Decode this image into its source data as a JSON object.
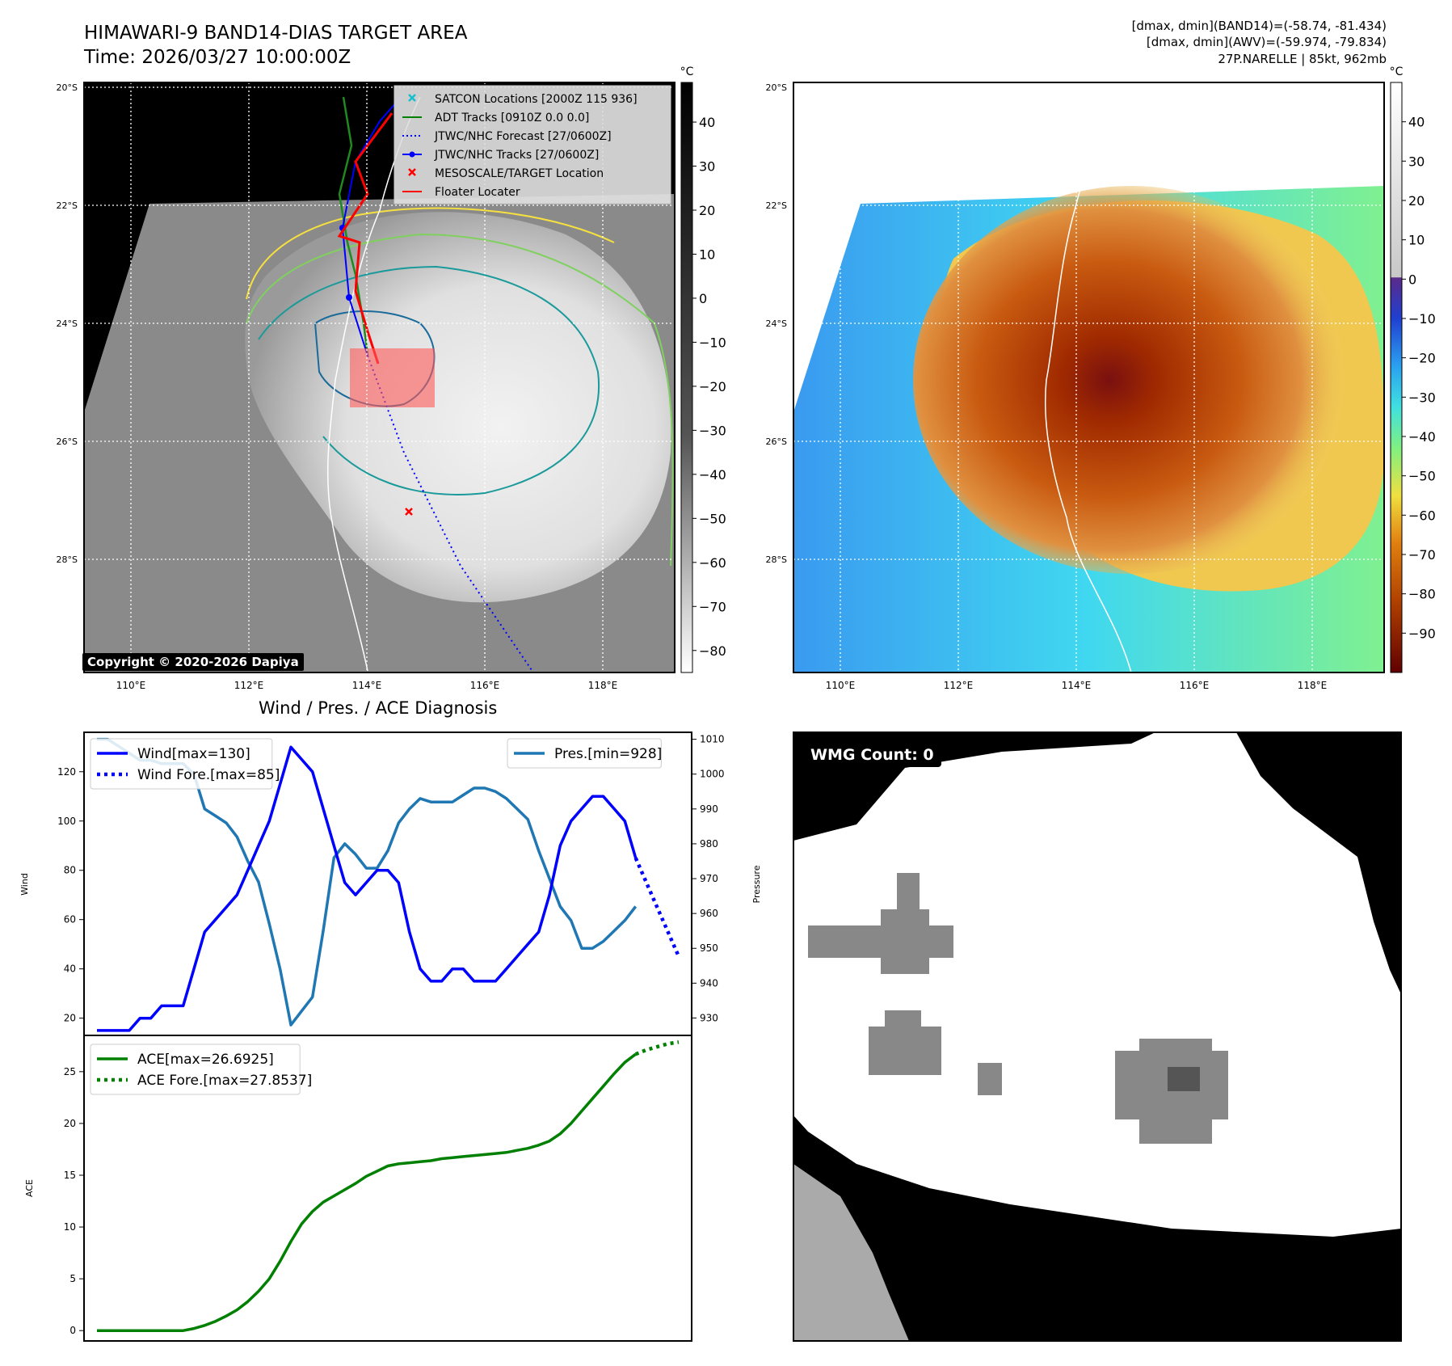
{
  "header": {
    "title_line1": "HIMAWARI-9 BAND14-DIAS TARGET AREA",
    "title_line2": "Time: 2026/03/27 10:00:00Z",
    "stats_line1": "[dmax, dmin](BAND14)=(-58.74, -81.434)",
    "stats_line2": "[dmax, dmin](AWV)=(-59.974, -79.834)",
    "stats_line3": "27P.NARELLE | 85kt, 962mb"
  },
  "map": {
    "lat_labels": [
      "20°S",
      "22°S",
      "24°S",
      "26°S",
      "28°S"
    ],
    "lon_labels": [
      "110°E",
      "112°E",
      "114°E",
      "116°E",
      "118°E"
    ],
    "copyright": "Copyright © 2020-2026 Dapiya",
    "legend": [
      {
        "label": "SATCON Locations [2000Z 115 936]",
        "color": "#17becf",
        "marker": "x"
      },
      {
        "label": "ADT Tracks [0910Z 0.0 0.0]",
        "color": "#008000",
        "marker": "line"
      },
      {
        "label": "JTWC/NHC Forecast [27/0600Z]",
        "color": "#0000ff",
        "marker": "dotted"
      },
      {
        "label": "JTWC/NHC Tracks [27/0600Z]",
        "color": "#0000ff",
        "marker": "line-dot"
      },
      {
        "label": "MESOSCALE/TARGET Location",
        "color": "#ff0000",
        "marker": "x"
      },
      {
        "label": "Floater Locater",
        "color": "#ff0000",
        "marker": "line"
      }
    ],
    "colorbar_unit": "°C",
    "gray_cbar_ticks": [
      "40",
      "30",
      "20",
      "10",
      "0",
      "−10",
      "−20",
      "−30",
      "−40",
      "−50",
      "−60",
      "−70",
      "−80"
    ],
    "gray_cbar_values": [
      40,
      30,
      20,
      10,
      0,
      -10,
      -20,
      -30,
      -40,
      -50,
      -60,
      -70,
      -80
    ],
    "color_cbar_ticks": [
      "40",
      "30",
      "20",
      "10",
      "0",
      "−10",
      "−20",
      "−30",
      "−40",
      "−50",
      "−60",
      "−70",
      "−80",
      "−90"
    ],
    "color_cbar_values": [
      40,
      30,
      20,
      10,
      0,
      -10,
      -20,
      -30,
      -40,
      -50,
      -60,
      -70,
      -80,
      -90
    ]
  },
  "chart_data": [
    {
      "type": "line",
      "title": "Wind / Pres. / ACE Diagnosis",
      "ylabel": "Wind",
      "ylabel_right": "Pressure",
      "ylim": [
        13,
        136
      ],
      "ylim_right": [
        925,
        1012
      ],
      "yticks": [
        20,
        40,
        60,
        80,
        100,
        120
      ],
      "yticks_right": [
        930,
        940,
        950,
        960,
        970,
        980,
        990,
        1000,
        1010
      ],
      "legend_left": [
        "Wind[max=130]",
        "Wind Fore.[max=85]"
      ],
      "legend_right": [
        "Pres.[min=928]"
      ],
      "series": [
        {
          "name": "Wind[max=130]",
          "color": "#0000ff",
          "style": "solid",
          "x": [
            0,
            1,
            2,
            3,
            4,
            5,
            6,
            7,
            8,
            9,
            10,
            11,
            12,
            13,
            14,
            15,
            16,
            17,
            18,
            19,
            20,
            21,
            22,
            23,
            24,
            25,
            26,
            27,
            28,
            29,
            30,
            31,
            32,
            33,
            34,
            35,
            36,
            37,
            38,
            39,
            40,
            41,
            42,
            43,
            44,
            45,
            46,
            47,
            48,
            49,
            50
          ],
          "values": [
            15,
            15,
            15,
            15,
            20,
            20,
            25,
            25,
            25,
            40,
            55,
            60,
            65,
            70,
            80,
            90,
            100,
            115,
            130,
            125,
            120,
            105,
            90,
            75,
            70,
            75,
            80,
            80,
            75,
            55,
            40,
            35,
            35,
            40,
            40,
            35,
            35,
            35,
            40,
            45,
            50,
            55,
            70,
            90,
            100,
            105,
            110,
            110,
            105,
            100,
            85
          ]
        },
        {
          "name": "Wind Fore.[max=85]",
          "color": "#0000ff",
          "style": "dotted",
          "x": [
            50,
            51,
            52,
            53,
            54
          ],
          "values": [
            85,
            75,
            65,
            55,
            45
          ]
        },
        {
          "name": "Pres.[min=928]",
          "color": "#1f77b4",
          "style": "solid",
          "x": [
            0,
            1,
            2,
            3,
            4,
            5,
            6,
            7,
            8,
            9,
            10,
            11,
            12,
            13,
            14,
            15,
            16,
            17,
            18,
            19,
            20,
            21,
            22,
            23,
            24,
            25,
            26,
            27,
            28,
            29,
            30,
            31,
            32,
            33,
            34,
            35,
            36,
            37,
            38,
            39,
            40,
            41,
            42,
            43,
            44,
            45,
            46,
            47,
            48,
            49,
            50
          ],
          "values": [
            1010,
            1010,
            1008,
            1006,
            1004,
            1004,
            1003,
            1003,
            1003,
            1000,
            990,
            988,
            986,
            982,
            975,
            969,
            957,
            944,
            928,
            932,
            936,
            955,
            976,
            980,
            977,
            973,
            973,
            978,
            986,
            990,
            993,
            992,
            992,
            992,
            994,
            996,
            996,
            995,
            993,
            990,
            987,
            978,
            970,
            962,
            958,
            950,
            950,
            952,
            955,
            958,
            962
          ]
        }
      ]
    },
    {
      "type": "line",
      "ylabel": "ACE",
      "ylim": [
        -1,
        28.5
      ],
      "yticks": [
        0,
        5,
        10,
        15,
        20,
        25
      ],
      "legend": [
        "ACE[max=26.6925]",
        "ACE Fore.[max=27.8537]"
      ],
      "series": [
        {
          "name": "ACE[max=26.6925]",
          "color": "#008000",
          "style": "solid",
          "x": [
            0,
            1,
            2,
            3,
            4,
            5,
            6,
            7,
            8,
            9,
            10,
            11,
            12,
            13,
            14,
            15,
            16,
            17,
            18,
            19,
            20,
            21,
            22,
            23,
            24,
            25,
            26,
            27,
            28,
            29,
            30,
            31,
            32,
            33,
            34,
            35,
            36,
            37,
            38,
            39,
            40,
            41,
            42,
            43,
            44,
            45,
            46,
            47,
            48,
            49,
            50
          ],
          "values": [
            0,
            0,
            0,
            0,
            0,
            0,
            0,
            0,
            0,
            0.2,
            0.5,
            0.9,
            1.4,
            2,
            2.8,
            3.8,
            5,
            6.7,
            8.6,
            10.3,
            11.5,
            12.4,
            13,
            13.6,
            14.2,
            14.9,
            15.4,
            15.9,
            16.1,
            16.2,
            16.3,
            16.4,
            16.6,
            16.7,
            16.8,
            16.9,
            17,
            17.1,
            17.2,
            17.4,
            17.6,
            17.9,
            18.3,
            19,
            20,
            21.2,
            22.4,
            23.6,
            24.8,
            25.9,
            26.6925
          ]
        },
        {
          "name": "ACE Fore.[max=27.8537]",
          "color": "#008000",
          "style": "dotted",
          "x": [
            50,
            51,
            52,
            53,
            54
          ],
          "values": [
            26.6925,
            27.1,
            27.4,
            27.7,
            27.8537
          ]
        }
      ]
    }
  ],
  "wmg_panel": {
    "label": "WMG Count: 0"
  }
}
